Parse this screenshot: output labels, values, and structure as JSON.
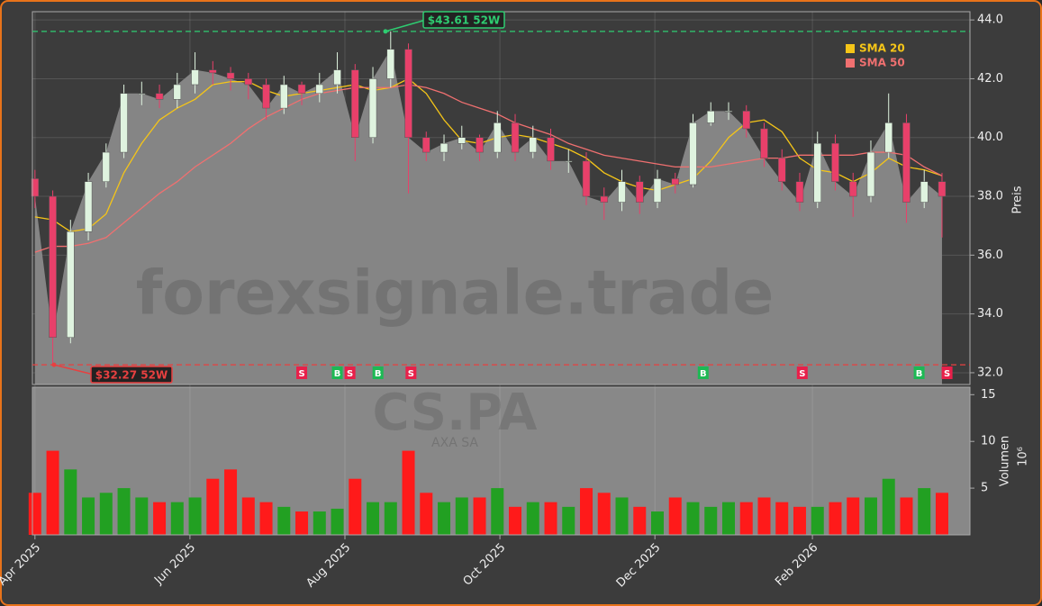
{
  "chart_data": {
    "type": "candlestick",
    "x": [
      0,
      7,
      14,
      21,
      28,
      35,
      42,
      49,
      56,
      63,
      70,
      77,
      84,
      91,
      98,
      105,
      112,
      119,
      126,
      133,
      140,
      147,
      154,
      161,
      168,
      175,
      182,
      189,
      196,
      203,
      210,
      217,
      224,
      231,
      238,
      245,
      252,
      259,
      266,
      273,
      280,
      287,
      294,
      301,
      308,
      315,
      322,
      329,
      336,
      343,
      350,
      357
    ],
    "open": [
      38.6,
      38.0,
      33.2,
      36.8,
      38.5,
      39.5,
      41.5,
      41.5,
      41.3,
      41.8,
      42.3,
      42.2,
      42.0,
      41.8,
      41.0,
      41.8,
      41.5,
      41.8,
      42.3,
      40.0,
      42.0,
      43.0,
      40.0,
      39.5,
      39.8,
      40.0,
      39.5,
      40.5,
      39.5,
      40.0,
      39.2,
      39.2,
      38.0,
      37.8,
      38.5,
      37.8,
      38.6,
      38.4,
      40.5,
      40.9,
      40.9,
      40.3,
      39.3,
      38.5,
      37.8,
      39.8,
      38.5,
      38.0,
      39.5,
      40.5,
      37.8,
      38.5
    ],
    "high": [
      38.9,
      38.2,
      37.2,
      38.8,
      39.8,
      41.8,
      41.9,
      41.8,
      42.2,
      42.9,
      42.6,
      42.4,
      42.2,
      42.0,
      42.1,
      41.9,
      42.2,
      42.9,
      42.5,
      42.4,
      43.61,
      43.2,
      40.2,
      40.1,
      40.4,
      40.1,
      40.9,
      40.8,
      40.4,
      40.3,
      39.6,
      39.5,
      38.3,
      38.9,
      38.7,
      38.9,
      38.8,
      40.8,
      41.2,
      41.2,
      41.1,
      40.5,
      39.6,
      38.8,
      40.2,
      40.1,
      38.8,
      39.9,
      41.5,
      40.8,
      38.9,
      38.8
    ],
    "low": [
      37.6,
      32.27,
      33.0,
      36.5,
      38.3,
      39.3,
      41.1,
      41.0,
      41.0,
      41.5,
      41.8,
      41.6,
      41.3,
      40.6,
      40.8,
      41.1,
      41.2,
      41.5,
      39.2,
      39.8,
      41.7,
      38.1,
      39.2,
      39.2,
      39.6,
      39.2,
      39.3,
      39.2,
      39.3,
      38.9,
      38.8,
      37.7,
      37.2,
      37.5,
      37.4,
      37.6,
      38.1,
      38.3,
      40.4,
      40.6,
      40.0,
      39.0,
      38.2,
      37.5,
      37.6,
      38.2,
      37.3,
      37.8,
      39.3,
      37.1,
      37.6,
      36.6
    ],
    "close": [
      38.0,
      33.2,
      36.8,
      38.5,
      39.5,
      41.5,
      41.5,
      41.3,
      41.8,
      42.3,
      42.2,
      42.0,
      41.8,
      41.0,
      41.8,
      41.5,
      41.8,
      42.3,
      40.0,
      42.0,
      43.0,
      40.0,
      39.5,
      39.8,
      40.0,
      39.5,
      40.5,
      39.5,
      40.0,
      39.2,
      39.2,
      38.0,
      37.8,
      38.5,
      37.8,
      38.6,
      38.4,
      40.5,
      40.9,
      40.9,
      40.3,
      39.3,
      38.5,
      37.8,
      39.8,
      38.5,
      38.0,
      39.5,
      40.5,
      37.8,
      38.5,
      38.0
    ],
    "up_color": "#dff3df",
    "down_color": "#e8406a",
    "area_color": "#858585",
    "series": [
      {
        "name": "SMA 20",
        "color": "#f5c518",
        "values": [
          37.3,
          37.2,
          36.8,
          36.9,
          37.4,
          38.8,
          39.8,
          40.6,
          41.0,
          41.3,
          41.8,
          41.9,
          41.9,
          41.6,
          41.4,
          41.5,
          41.6,
          41.7,
          41.8,
          41.6,
          41.7,
          42.0,
          41.5,
          40.6,
          39.9,
          39.8,
          40.0,
          40.1,
          40.0,
          39.8,
          39.6,
          39.3,
          38.8,
          38.5,
          38.3,
          38.2,
          38.4,
          38.6,
          39.2,
          40.0,
          40.5,
          40.6,
          40.2,
          39.3,
          38.9,
          38.8,
          38.5,
          38.8,
          39.3,
          39.0,
          38.9,
          38.7
        ]
      },
      {
        "name": "SMA 50",
        "color": "#f07070",
        "values": [
          36.1,
          36.3,
          36.3,
          36.4,
          36.6,
          37.1,
          37.6,
          38.1,
          38.5,
          39.0,
          39.4,
          39.8,
          40.3,
          40.7,
          41.0,
          41.3,
          41.5,
          41.6,
          41.7,
          41.7,
          41.7,
          41.8,
          41.7,
          41.5,
          41.2,
          41.0,
          40.8,
          40.5,
          40.3,
          40.1,
          39.8,
          39.6,
          39.4,
          39.3,
          39.2,
          39.1,
          39.0,
          39.0,
          39.0,
          39.1,
          39.2,
          39.3,
          39.3,
          39.4,
          39.4,
          39.4,
          39.4,
          39.5,
          39.5,
          39.4,
          39.0,
          38.7
        ]
      }
    ],
    "xlim": [
      -1,
      368
    ],
    "xticks": [
      {
        "value": 0,
        "label": "Apr 2025"
      },
      {
        "value": 61,
        "label": "Jun 2025"
      },
      {
        "value": 122,
        "label": "Aug 2025"
      },
      {
        "value": 183,
        "label": "Oct 2025"
      },
      {
        "value": 244,
        "label": "Dec 2025"
      },
      {
        "value": 306,
        "label": "Feb 2026"
      }
    ],
    "ylabel": "Preis",
    "ylim": [
      31.6,
      44.28
    ],
    "yticks": [
      {
        "value": 32,
        "label": "32.0"
      },
      {
        "value": 34,
        "label": "34.0"
      },
      {
        "value": 36,
        "label": "36.0"
      },
      {
        "value": 38,
        "label": "38.0"
      },
      {
        "value": 40,
        "label": "40.0"
      },
      {
        "value": 42,
        "label": "42.0"
      },
      {
        "value": 44,
        "label": "44.0"
      }
    ],
    "grid": true,
    "high_52w": {
      "value": 43.61,
      "label": "$43.61 52W",
      "color": "#2ecc71"
    },
    "low_52w": {
      "value": 32.27,
      "label": "$32.27 52W",
      "color": "#e84040"
    },
    "signals": [
      {
        "x": 105,
        "label": "S"
      },
      {
        "x": 119,
        "label": "B"
      },
      {
        "x": 124,
        "label": "S"
      },
      {
        "x": 135,
        "label": "B"
      },
      {
        "x": 148,
        "label": "S"
      },
      {
        "x": 263,
        "label": "B"
      },
      {
        "x": 302,
        "label": "S"
      },
      {
        "x": 348,
        "label": "B"
      },
      {
        "x": 359,
        "label": "S"
      }
    ],
    "signal_colors": {
      "B": "#1db954",
      "S": "#e8204a"
    },
    "volume": {
      "label": "Volumen",
      "scale_label": "10⁶",
      "up_color": "#22a022",
      "down_color": "#ff1a1a",
      "values": [
        4.5,
        9,
        7,
        4,
        4.5,
        5,
        4,
        3.5,
        3.5,
        4,
        6,
        7,
        4,
        3.5,
        3,
        2.5,
        2.5,
        2.8,
        6,
        3.5,
        3.5,
        9,
        4.5,
        3.5,
        4,
        4,
        5,
        3,
        3.5,
        3.5,
        3,
        5,
        4.5,
        4,
        3,
        2.5,
        4,
        3.5,
        3,
        3.5,
        3.5,
        4,
        3.5,
        3,
        3,
        3.5,
        4,
        4,
        6,
        4,
        5,
        4.5
      ],
      "ylim": [
        0,
        15.8
      ],
      "yticks": [
        5,
        10,
        15
      ]
    },
    "watermark": "forexsignale.trade",
    "symbol": "CS.PA",
    "company": "AXA SA"
  }
}
